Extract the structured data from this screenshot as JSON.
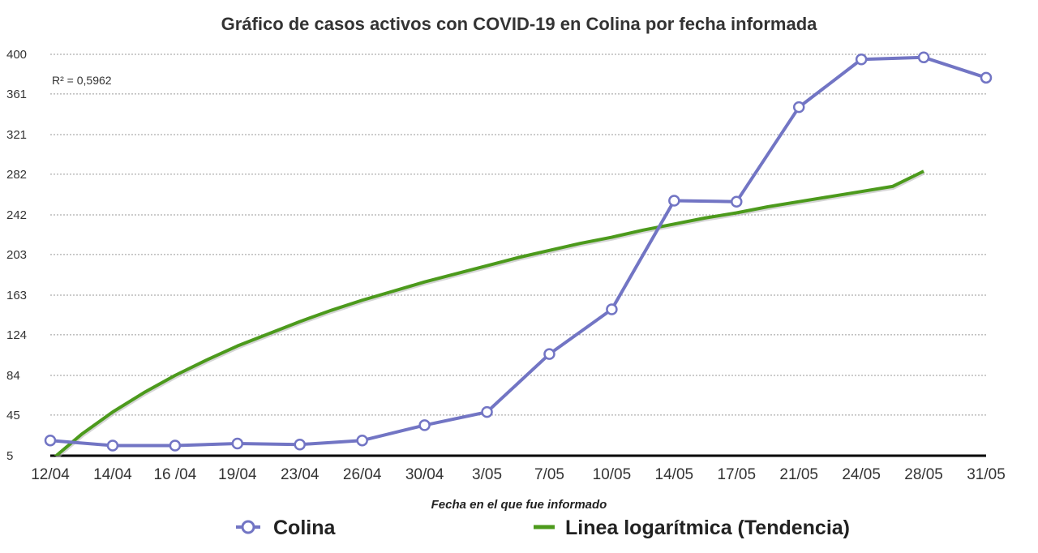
{
  "chart_data": {
    "type": "line",
    "title": "Gráfico de casos activos con COVID-19 en Colina por fecha informada",
    "xlabel": "Fecha en el que fue informado",
    "ylabel": "",
    "categories": [
      "12/04",
      "14/04",
      "16 /04",
      "19/04",
      "23/04",
      "26/04",
      "30/04",
      "3/05",
      "7/05",
      "10/05",
      "14/05",
      "17/05",
      "21/05",
      "24/05",
      "28/05",
      "31/05"
    ],
    "y_ticks": [
      "5",
      "45",
      "84",
      "124",
      "163",
      "203",
      "242",
      "282",
      "321",
      "361",
      "400"
    ],
    "ylim": [
      5,
      400
    ],
    "grid": true,
    "legend_placement": "bottom",
    "annotation": "R² = 0,5962",
    "series": [
      {
        "name": "Colina",
        "kind": "line-markers",
        "color": "#7275c4",
        "values": [
          20,
          15,
          15,
          17,
          16,
          20,
          35,
          48,
          105,
          149,
          256,
          255,
          348,
          395,
          397,
          377
        ]
      },
      {
        "name": "Linea logarítmica (Tendencia)",
        "kind": "trendline",
        "color": "#4c9a1c",
        "x": [
          1.0,
          1.5,
          2.0,
          2.5,
          3.0,
          3.5,
          4.0,
          4.5,
          5.0,
          5.5,
          6.0,
          6.5,
          7.0,
          7.5,
          8.0,
          8.5,
          9.0,
          9.5,
          10.0,
          10.5,
          11.0,
          11.5,
          12.0,
          12.5,
          13.0,
          13.5,
          14.0,
          14.5,
          15.0
        ],
        "values": [
          0,
          26,
          48,
          67,
          84,
          99,
          113,
          125,
          137,
          148,
          158,
          167,
          176,
          184,
          192,
          200,
          207,
          214,
          220,
          227,
          233,
          239,
          244,
          250,
          255,
          260,
          265,
          270,
          285
        ]
      }
    ]
  }
}
